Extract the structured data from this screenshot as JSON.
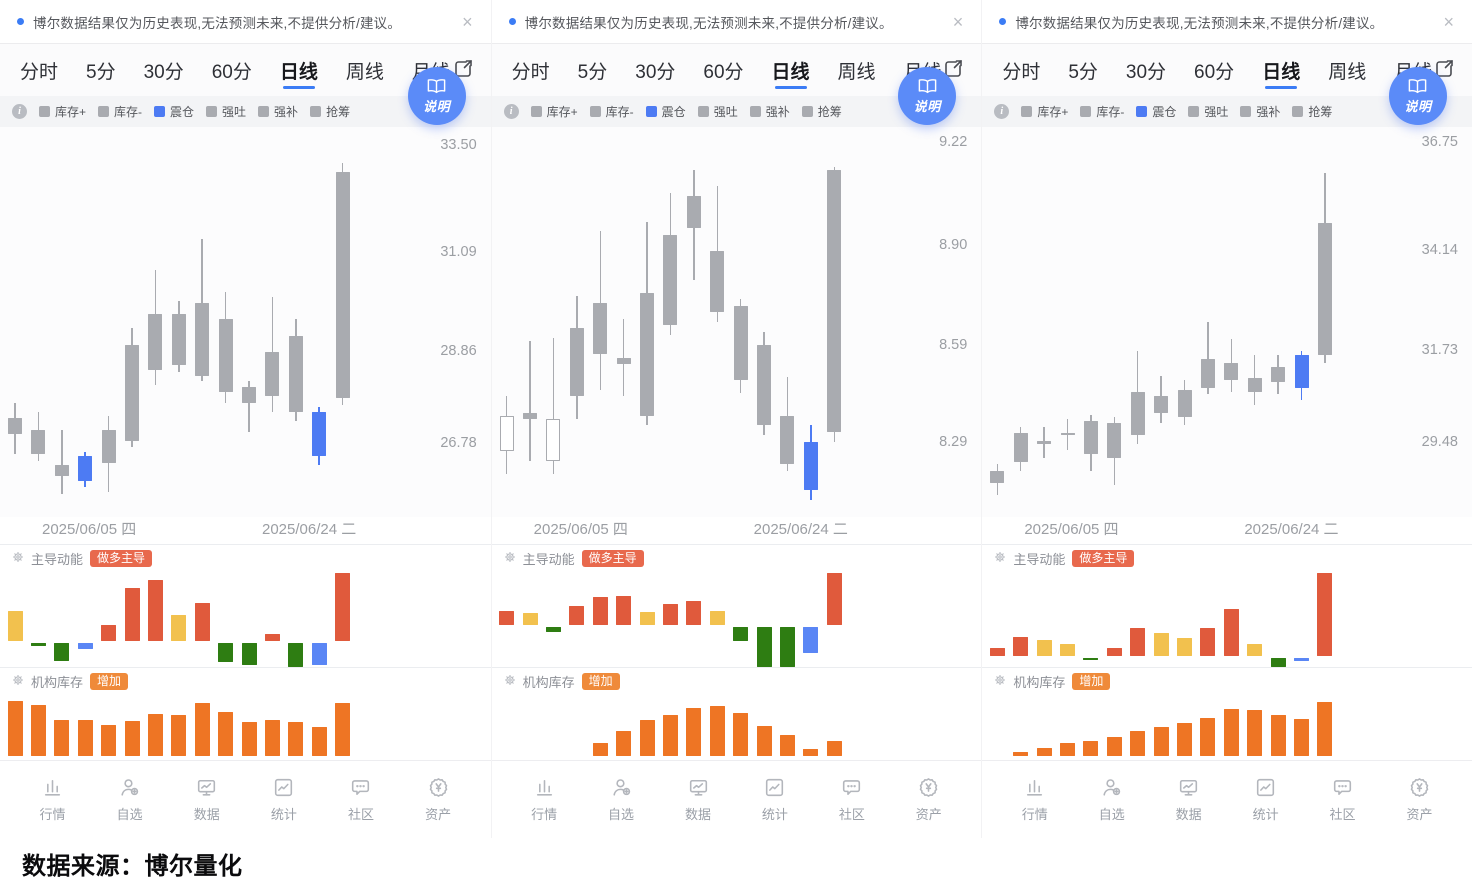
{
  "colors": {
    "accent_blue": "#3b7cf5",
    "candle_gray": "#a9abb0",
    "candle_blue": "#4d7bf3",
    "bar_red": "#e05a3c",
    "bar_yellow": "#f2c14e",
    "bar_green": "#2e7d12",
    "bar_blue": "#5a86f5",
    "inventory_orange": "#ee7524",
    "badge_long_bg": "#e8694d",
    "badge_increase_bg": "#ef8a3a"
  },
  "shared": {
    "notice": {
      "text": "博尔数据结果仅为历史表现,无法预测未来,不提供分析/建议。",
      "close_label": "×"
    },
    "tabs": [
      "分时",
      "5分",
      "30分",
      "60分",
      "日线",
      "周线",
      "月线"
    ],
    "active_tab": "日线",
    "legend": [
      {
        "label": "库存+",
        "color": "#a9abb0"
      },
      {
        "label": "库存-",
        "color": "#a9abb0"
      },
      {
        "label": "震仓",
        "color": "#4d7bf3"
      },
      {
        "label": "强吐",
        "color": "#a9abb0"
      },
      {
        "label": "强补",
        "color": "#a9abb0"
      },
      {
        "label": "抢筹",
        "color": "#a9abb0"
      }
    ],
    "help_button_label": "说明",
    "momentum_title": "主导动能",
    "momentum_badge": "做多主导",
    "inventory_title": "机构库存",
    "inventory_badge": "增加",
    "dates": [
      "2025/06/05 四",
      "2025/06/24 二"
    ],
    "nav": [
      {
        "label": "行情",
        "icon": "bar-chart-icon"
      },
      {
        "label": "自选",
        "icon": "user-plus-icon"
      },
      {
        "label": "数据",
        "icon": "monitor-trend-icon"
      },
      {
        "label": "统计",
        "icon": "stats-trend-icon"
      },
      {
        "label": "社区",
        "icon": "chat-dots-icon"
      },
      {
        "label": "资产",
        "icon": "yuan-badge-icon"
      }
    ]
  },
  "page": {
    "source_label": "数据来源：博尔量化"
  },
  "chart_data": [
    {
      "type": "candlestick+bars",
      "price_labels": [
        "33.50",
        "31.09",
        "28.86",
        "26.78"
      ],
      "ylim": [
        25.05,
        33.8
      ],
      "candles": [
        {
          "o": 26.9,
          "c": 27.25,
          "h": 27.6,
          "l": 26.45,
          "s": "gray"
        },
        {
          "o": 27.0,
          "c": 26.45,
          "h": 27.4,
          "l": 26.3,
          "s": "gray"
        },
        {
          "o": 26.2,
          "c": 25.95,
          "h": 27.0,
          "l": 25.55,
          "s": "gray"
        },
        {
          "o": 26.4,
          "c": 25.85,
          "h": 26.5,
          "l": 25.7,
          "s": "blue"
        },
        {
          "o": 26.25,
          "c": 27.0,
          "h": 27.3,
          "l": 25.6,
          "s": "gray"
        },
        {
          "o": 26.75,
          "c": 28.9,
          "h": 29.3,
          "l": 26.6,
          "s": "gray"
        },
        {
          "o": 28.35,
          "c": 29.6,
          "h": 30.6,
          "l": 28.0,
          "s": "gray"
        },
        {
          "o": 28.45,
          "c": 29.6,
          "h": 29.9,
          "l": 28.3,
          "s": "gray"
        },
        {
          "o": 28.2,
          "c": 29.85,
          "h": 31.3,
          "l": 28.1,
          "s": "gray"
        },
        {
          "o": 27.85,
          "c": 29.5,
          "h": 30.1,
          "l": 27.6,
          "s": "gray"
        },
        {
          "o": 27.6,
          "c": 27.95,
          "h": 28.1,
          "l": 26.95,
          "s": "gray"
        },
        {
          "o": 27.75,
          "c": 28.75,
          "h": 30.0,
          "l": 27.4,
          "s": "gray"
        },
        {
          "o": 27.4,
          "c": 29.1,
          "h": 29.5,
          "l": 27.2,
          "s": "gray"
        },
        {
          "o": 27.4,
          "c": 26.4,
          "h": 27.5,
          "l": 26.2,
          "s": "blue"
        },
        {
          "o": 27.7,
          "c": 32.8,
          "h": 33.0,
          "l": 27.55,
          "s": "gray"
        }
      ],
      "momentum": [
        {
          "v": 33,
          "c": "yellow"
        },
        {
          "v": -4,
          "c": "green"
        },
        {
          "v": -20,
          "c": "green"
        },
        {
          "v": -7,
          "c": "blue"
        },
        {
          "v": 17,
          "c": "red"
        },
        {
          "v": 58,
          "c": "red"
        },
        {
          "v": 67,
          "c": "red"
        },
        {
          "v": 28,
          "c": "yellow"
        },
        {
          "v": 42,
          "c": "red"
        },
        {
          "v": -22,
          "c": "green"
        },
        {
          "v": -25,
          "c": "green"
        },
        {
          "v": 7,
          "c": "red"
        },
        {
          "v": -27,
          "c": "green"
        },
        {
          "v": -25,
          "c": "blue"
        },
        {
          "v": 75,
          "c": "red"
        }
      ],
      "inventory": [
        0.92,
        0.85,
        0.6,
        0.6,
        0.52,
        0.58,
        0.7,
        0.68,
        0.88,
        0.73,
        0.57,
        0.6,
        0.57,
        0.48,
        0.88
      ]
    },
    {
      "type": "candlestick+bars",
      "price_labels": [
        "9.22",
        "8.90",
        "8.59",
        "8.29"
      ],
      "ylim": [
        8.05,
        9.25
      ],
      "candles": [
        {
          "o": 8.25,
          "c": 8.36,
          "h": 8.42,
          "l": 8.18,
          "s": "hollow"
        },
        {
          "o": 8.35,
          "c": 8.37,
          "h": 8.59,
          "l": 8.22,
          "s": "gray"
        },
        {
          "o": 8.22,
          "c": 8.35,
          "h": 8.6,
          "l": 8.18,
          "s": "hollow"
        },
        {
          "o": 8.42,
          "c": 8.63,
          "h": 8.73,
          "l": 8.35,
          "s": "gray"
        },
        {
          "o": 8.55,
          "c": 8.71,
          "h": 8.93,
          "l": 8.44,
          "s": "gray"
        },
        {
          "o": 8.52,
          "c": 8.54,
          "h": 8.66,
          "l": 8.42,
          "s": "gray"
        },
        {
          "o": 8.36,
          "c": 8.74,
          "h": 8.96,
          "l": 8.33,
          "s": "gray"
        },
        {
          "o": 8.64,
          "c": 8.92,
          "h": 9.05,
          "l": 8.61,
          "s": "gray"
        },
        {
          "o": 8.94,
          "c": 9.04,
          "h": 9.12,
          "l": 8.78,
          "s": "gray"
        },
        {
          "o": 8.68,
          "c": 8.87,
          "h": 9.07,
          "l": 8.65,
          "s": "gray"
        },
        {
          "o": 8.47,
          "c": 8.7,
          "h": 8.72,
          "l": 8.43,
          "s": "gray"
        },
        {
          "o": 8.33,
          "c": 8.58,
          "h": 8.62,
          "l": 8.3,
          "s": "gray"
        },
        {
          "o": 8.36,
          "c": 8.21,
          "h": 8.48,
          "l": 8.19,
          "s": "gray"
        },
        {
          "o": 8.28,
          "c": 8.13,
          "h": 8.33,
          "l": 8.1,
          "s": "blue"
        },
        {
          "o": 9.12,
          "c": 8.31,
          "h": 9.13,
          "l": 8.28,
          "s": "gray"
        }
      ],
      "momentum": [
        {
          "v": 14,
          "c": "red"
        },
        {
          "v": 12,
          "c": "yellow"
        },
        {
          "v": -5,
          "c": "green"
        },
        {
          "v": 19,
          "c": "red"
        },
        {
          "v": 28,
          "c": "red"
        },
        {
          "v": 29,
          "c": "red"
        },
        {
          "v": 13,
          "c": "yellow"
        },
        {
          "v": 21,
          "c": "red"
        },
        {
          "v": 24,
          "c": "red"
        },
        {
          "v": 14,
          "c": "yellow"
        },
        {
          "v": -14,
          "c": "green"
        },
        {
          "v": -40,
          "c": "green"
        },
        {
          "v": -40,
          "c": "green"
        },
        {
          "v": -26,
          "c": "blue"
        },
        {
          "v": 52,
          "c": "red"
        }
      ],
      "inventory": [
        0,
        0,
        0,
        0,
        0.22,
        0.42,
        0.6,
        0.68,
        0.8,
        0.84,
        0.72,
        0.5,
        0.35,
        0.12,
        0.25
      ]
    },
    {
      "type": "candlestick+bars",
      "price_labels": [
        "36.75",
        "34.14",
        "31.73",
        "29.48"
      ],
      "ylim": [
        27.6,
        37.0
      ],
      "candles": [
        {
          "o": 28.4,
          "c": 28.7,
          "h": 28.85,
          "l": 28.1,
          "s": "gray"
        },
        {
          "o": 28.9,
          "c": 29.6,
          "h": 29.75,
          "l": 28.7,
          "s": "gray"
        },
        {
          "o": 29.35,
          "c": 29.42,
          "h": 29.75,
          "l": 29.0,
          "s": "gray"
        },
        {
          "o": 29.55,
          "c": 29.62,
          "h": 29.95,
          "l": 29.2,
          "s": "gray"
        },
        {
          "o": 29.1,
          "c": 29.9,
          "h": 30.05,
          "l": 28.7,
          "s": "gray"
        },
        {
          "o": 29.0,
          "c": 29.85,
          "h": 30.0,
          "l": 28.35,
          "s": "gray"
        },
        {
          "o": 29.55,
          "c": 30.6,
          "h": 31.6,
          "l": 29.35,
          "s": "gray"
        },
        {
          "o": 30.1,
          "c": 30.5,
          "h": 31.0,
          "l": 29.85,
          "s": "gray"
        },
        {
          "o": 30.0,
          "c": 30.65,
          "h": 30.9,
          "l": 29.8,
          "s": "gray"
        },
        {
          "o": 30.7,
          "c": 31.4,
          "h": 32.3,
          "l": 30.55,
          "s": "gray"
        },
        {
          "o": 30.9,
          "c": 31.3,
          "h": 31.9,
          "l": 30.6,
          "s": "gray"
        },
        {
          "o": 30.6,
          "c": 30.95,
          "h": 31.5,
          "l": 30.3,
          "s": "gray"
        },
        {
          "o": 30.85,
          "c": 31.2,
          "h": 31.5,
          "l": 30.55,
          "s": "gray"
        },
        {
          "o": 30.7,
          "c": 31.5,
          "h": 31.6,
          "l": 30.4,
          "s": "blue"
        },
        {
          "o": 31.5,
          "c": 34.7,
          "h": 35.9,
          "l": 31.3,
          "s": "gray"
        }
      ],
      "momentum": [
        {
          "v": 8,
          "c": "red"
        },
        {
          "v": 18,
          "c": "red"
        },
        {
          "v": 15,
          "c": "yellow"
        },
        {
          "v": 12,
          "c": "yellow"
        },
        {
          "v": -2,
          "c": "green"
        },
        {
          "v": 8,
          "c": "red"
        },
        {
          "v": 27,
          "c": "red"
        },
        {
          "v": 22,
          "c": "yellow"
        },
        {
          "v": 17,
          "c": "yellow"
        },
        {
          "v": 27,
          "c": "red"
        },
        {
          "v": 46,
          "c": "red"
        },
        {
          "v": 12,
          "c": "yellow"
        },
        {
          "v": -9,
          "c": "green"
        },
        {
          "v": -3,
          "c": "blue"
        },
        {
          "v": 81,
          "c": "red"
        }
      ],
      "inventory": [
        0,
        0.07,
        0.13,
        0.22,
        0.25,
        0.32,
        0.42,
        0.48,
        0.55,
        0.63,
        0.78,
        0.77,
        0.68,
        0.62,
        0.9
      ]
    }
  ]
}
